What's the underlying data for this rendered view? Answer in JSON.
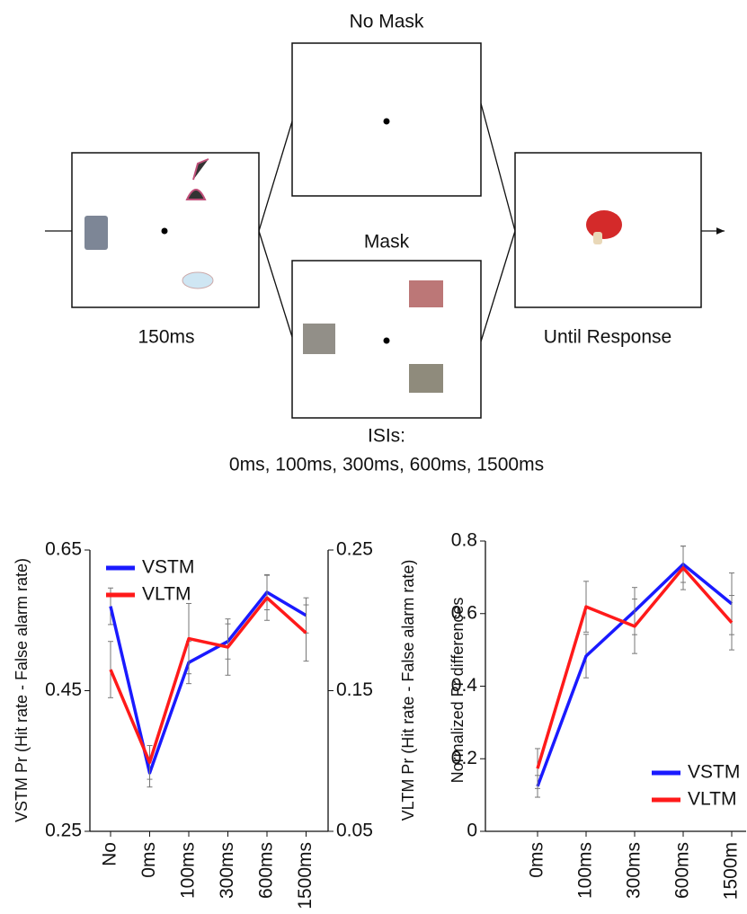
{
  "diagram": {
    "no_mask_label": "No Mask",
    "mask_label": "Mask",
    "first_duration": "150ms",
    "last_duration": "Until Response",
    "isi_title": "ISIs:",
    "isi_values": "0ms, 100ms, 300ms, 600ms, 1500ms"
  },
  "chart_data": [
    {
      "type": "line",
      "ylabel": "VSTM Pr (Hit rate - False alarm rate)",
      "y2label": "VLTM Pr (Hit rate - False alarm rate)",
      "categories": [
        "No",
        "0ms",
        "100ms",
        "300ms",
        "600ms",
        "1500ms"
      ],
      "ylim": [
        0.25,
        0.65
      ],
      "yticks": [
        0.25,
        0.45,
        0.65
      ],
      "y2lim": [
        0.05,
        0.25
      ],
      "y2ticks": [
        0.05,
        0.15,
        0.25
      ],
      "legend": "top-left",
      "series": [
        {
          "name": "VSTM",
          "color": "#1a1aff",
          "values": [
            0.57,
            0.333,
            0.49,
            0.52,
            0.59,
            0.557
          ],
          "errors": [
            0.026,
            0.02,
            0.03,
            0.025,
            0.025,
            0.025
          ]
        },
        {
          "name": "VLTM",
          "color": "#ff1a1a",
          "axis": "y2",
          "values": [
            0.165,
            0.099,
            0.187,
            0.181,
            0.216,
            0.191
          ],
          "errors": [
            0.02,
            0.012,
            0.025,
            0.02,
            0.016,
            0.02
          ]
        }
      ]
    },
    {
      "type": "line",
      "ylabel": "Normalized Pr differences",
      "categories": [
        "0ms",
        "100ms",
        "300ms",
        "600ms",
        "1500m"
      ],
      "ylim": [
        0,
        0.8
      ],
      "yticks": [
        0,
        0.2,
        0.4,
        0.6,
        0.8
      ],
      "legend": "bottom-right",
      "series": [
        {
          "name": "VSTM",
          "color": "#1a1aff",
          "values": [
            0.124,
            0.483,
            0.607,
            0.736,
            0.627
          ],
          "errors": [
            0.03,
            0.06,
            0.065,
            0.05,
            0.085
          ]
        },
        {
          "name": "VLTM",
          "color": "#ff1a1a",
          "values": [
            0.173,
            0.619,
            0.565,
            0.726,
            0.575
          ],
          "errors": [
            0.055,
            0.07,
            0.075,
            0.06,
            0.075
          ]
        }
      ]
    }
  ]
}
